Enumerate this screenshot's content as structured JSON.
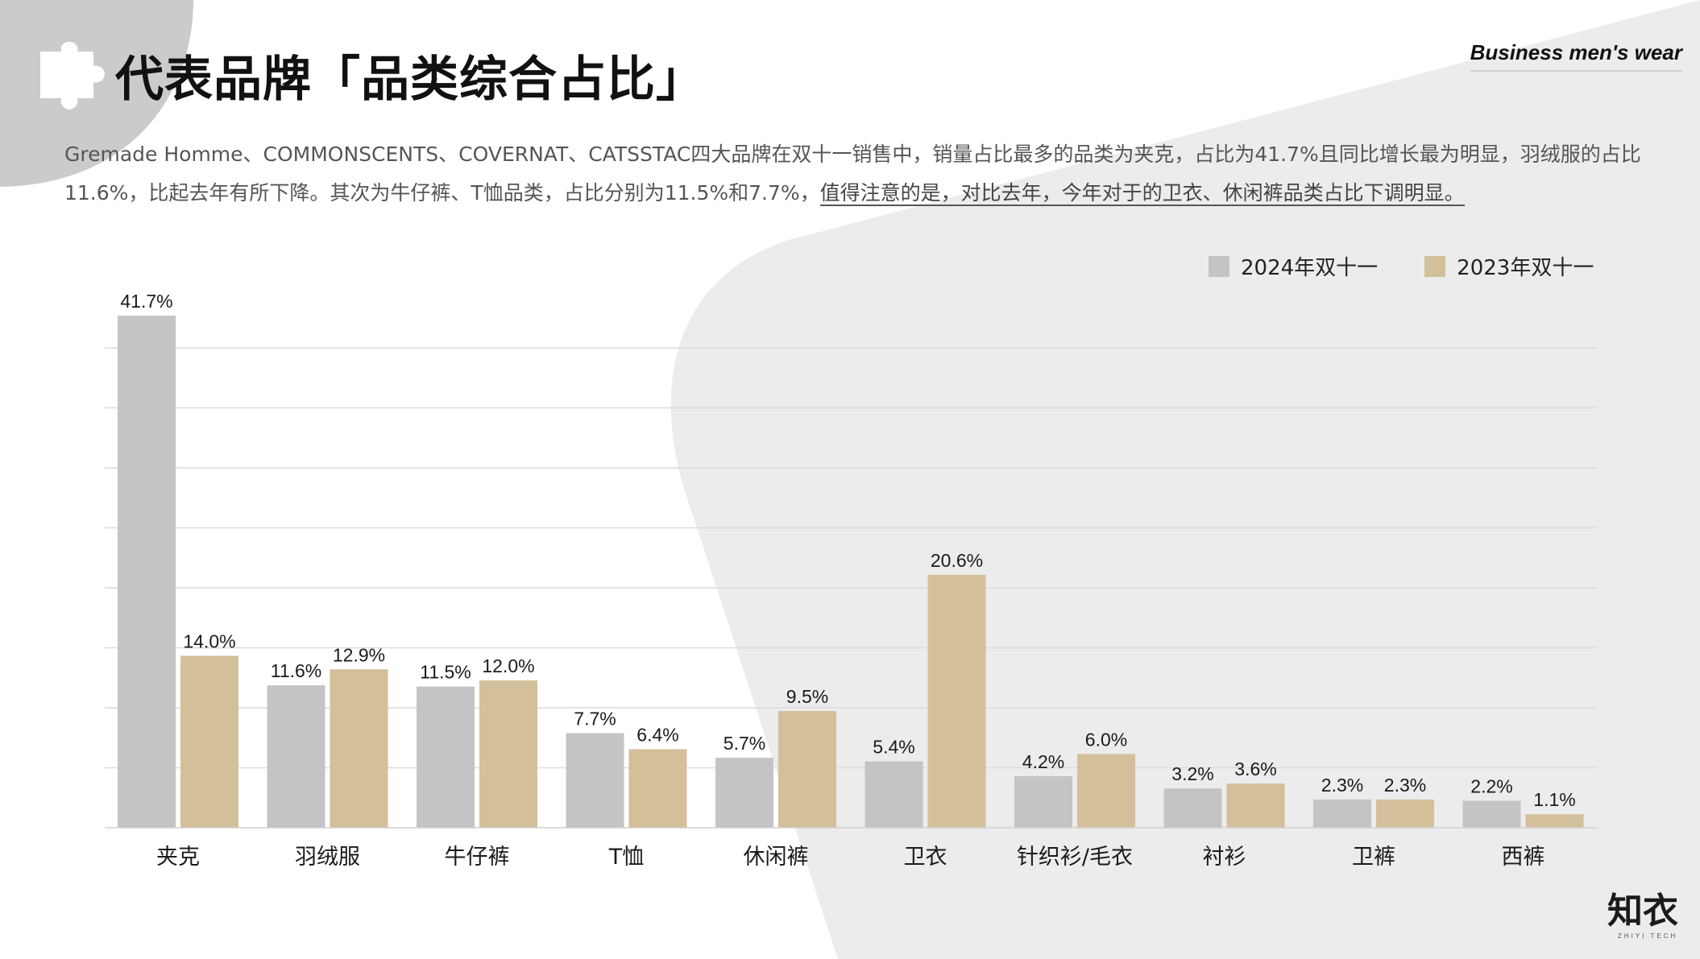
{
  "header": {
    "title": "代表品牌「品类综合占比」",
    "brand_tag": "Business men's wear"
  },
  "description": {
    "text_plain": "Gremade Homme、COMMONSCENTS、COVERNAT、CATSSTAC四大品牌在双十一销售中，销量占比最多的品类为夹克，占比为41.7%且同比增长最为明显，羽绒服的占比11.6%，比起去年有所下降。其次为牛仔裤、T恤品类，占比分别为11.5%和7.7%，",
    "text_highlight": "值得注意的是，对比去年，今年对于的卫衣、休闲裤品类占比下调明显。"
  },
  "logo": {
    "text": "知衣",
    "subtext": "ZHIYI TECH"
  },
  "colors": {
    "series_2024": "#c4c4c6",
    "series_2023": "#d3c09a",
    "grid": "#dcdcdc",
    "background_shape": "#ececec",
    "corner_shape": "#c9c9c9"
  },
  "icons": {
    "title_icon": "puzzle-piece-icon"
  },
  "chart_data": {
    "type": "bar",
    "title": "",
    "xlabel": "",
    "ylabel": "",
    "ylim": [
      0,
      45
    ],
    "grid": true,
    "legend_position": "top-right",
    "categories": [
      "夹克",
      "羽绒服",
      "牛仔裤",
      "T恤",
      "休闲裤",
      "卫衣",
      "针织衫/毛衣",
      "衬衫",
      "卫裤",
      "西裤"
    ],
    "series": [
      {
        "name": "2024年双十一",
        "color": "#c4c4c6",
        "values": [
          41.7,
          11.6,
          11.5,
          7.7,
          5.7,
          5.4,
          4.2,
          3.2,
          2.3,
          2.2
        ],
        "labels": [
          "41.7%",
          "11.6%",
          "11.5%",
          "7.7%",
          "5.7%",
          "5.4%",
          "4.2%",
          "3.2%",
          "2.3%",
          "2.2%"
        ]
      },
      {
        "name": "2023年双十一",
        "color": "#d3c09a",
        "values": [
          14.0,
          12.9,
          12.0,
          6.4,
          9.5,
          20.6,
          6.0,
          3.6,
          2.3,
          1.1
        ],
        "labels": [
          "14.0%",
          "12.9%",
          "12.0%",
          "6.4%",
          "9.5%",
          "20.6%",
          "6.0%",
          "3.6%",
          "2.3%",
          "1.1%"
        ]
      }
    ]
  }
}
